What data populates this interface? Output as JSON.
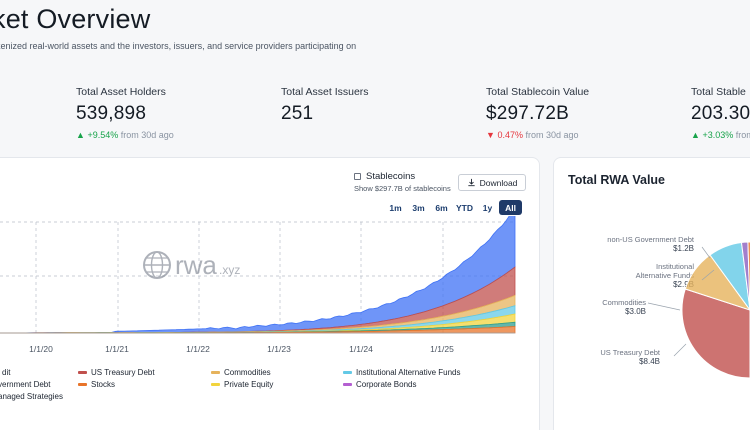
{
  "header": {
    "title": "ket Overview",
    "subtitle": "kenized real-world assets and the investors, issuers, and service providers participating on"
  },
  "stats": [
    {
      "label": "Total Asset Holders",
      "value": "539,898",
      "delta": "+9.54%",
      "delta_dir": "up",
      "delta_suffix": "from 30d ago"
    },
    {
      "label": "Total Asset Issuers",
      "value": "251",
      "delta": "",
      "delta_dir": "",
      "delta_suffix": ""
    },
    {
      "label": "Total Stablecoin Value",
      "value": "$297.72B",
      "delta": "0.47%",
      "delta_dir": "down",
      "delta_suffix": "from 30d ago"
    },
    {
      "label": "Total Stable",
      "value": "203.30",
      "delta": "+3.03%",
      "delta_dir": "up",
      "delta_suffix": "from"
    }
  ],
  "chart_controls": {
    "stablecoins_label": "Stablecoins",
    "stablecoins_checked": false,
    "stablecoins_sub": "Show $297.7B of stablecoins",
    "download_label": "Download",
    "ranges": [
      "1m",
      "3m",
      "6m",
      "YTD",
      "1y",
      "All"
    ],
    "active_range": "All"
  },
  "watermark": {
    "text": "rwa",
    "suffix": ".xyz"
  },
  "chart_data": {
    "type": "area",
    "x_tick_labels": [
      "1/1/20",
      "1/1/21",
      "1/1/22",
      "1/1/23",
      "1/1/24",
      "1/1/25"
    ],
    "grid": true,
    "stacked": true,
    "legend": [
      {
        "name": "dit",
        "color": "#3f72f5"
      },
      {
        "name": "US Treasury Debt",
        "color": "#c0504d"
      },
      {
        "name": "Commodities",
        "color": "#e6b35c"
      },
      {
        "name": "Institutional Alternative Funds",
        "color": "#63c9e6"
      },
      {
        "name": "vernment Debt",
        "color": "#8b5fbf"
      },
      {
        "name": "Stocks",
        "color": "#e8742a"
      },
      {
        "name": "Private Equity",
        "color": "#f2d43d"
      },
      {
        "name": "Corporate Bonds",
        "color": "#b45fd1"
      },
      {
        "name": "anaged Strategies",
        "color": "#2f9e8f"
      }
    ]
  },
  "side": {
    "title": "Total RWA Value",
    "pie_labels": [
      {
        "name": "non-US Government Debt",
        "value": "$1.2B"
      },
      {
        "name": "Institutional Alternative Funds",
        "value": "$2.9B"
      },
      {
        "name": "Commodities",
        "value": "$3.0B"
      },
      {
        "name": "US Treasury Debt",
        "value": "$8.4B"
      }
    ],
    "pie_colors": [
      "#3f72f5",
      "#c0504d",
      "#e6b35c",
      "#63c9e6",
      "#8b5fbf",
      "#e8742a",
      "#f2d43d",
      "#b45fd1",
      "#2f9e8f",
      "#dfe3ea"
    ]
  }
}
